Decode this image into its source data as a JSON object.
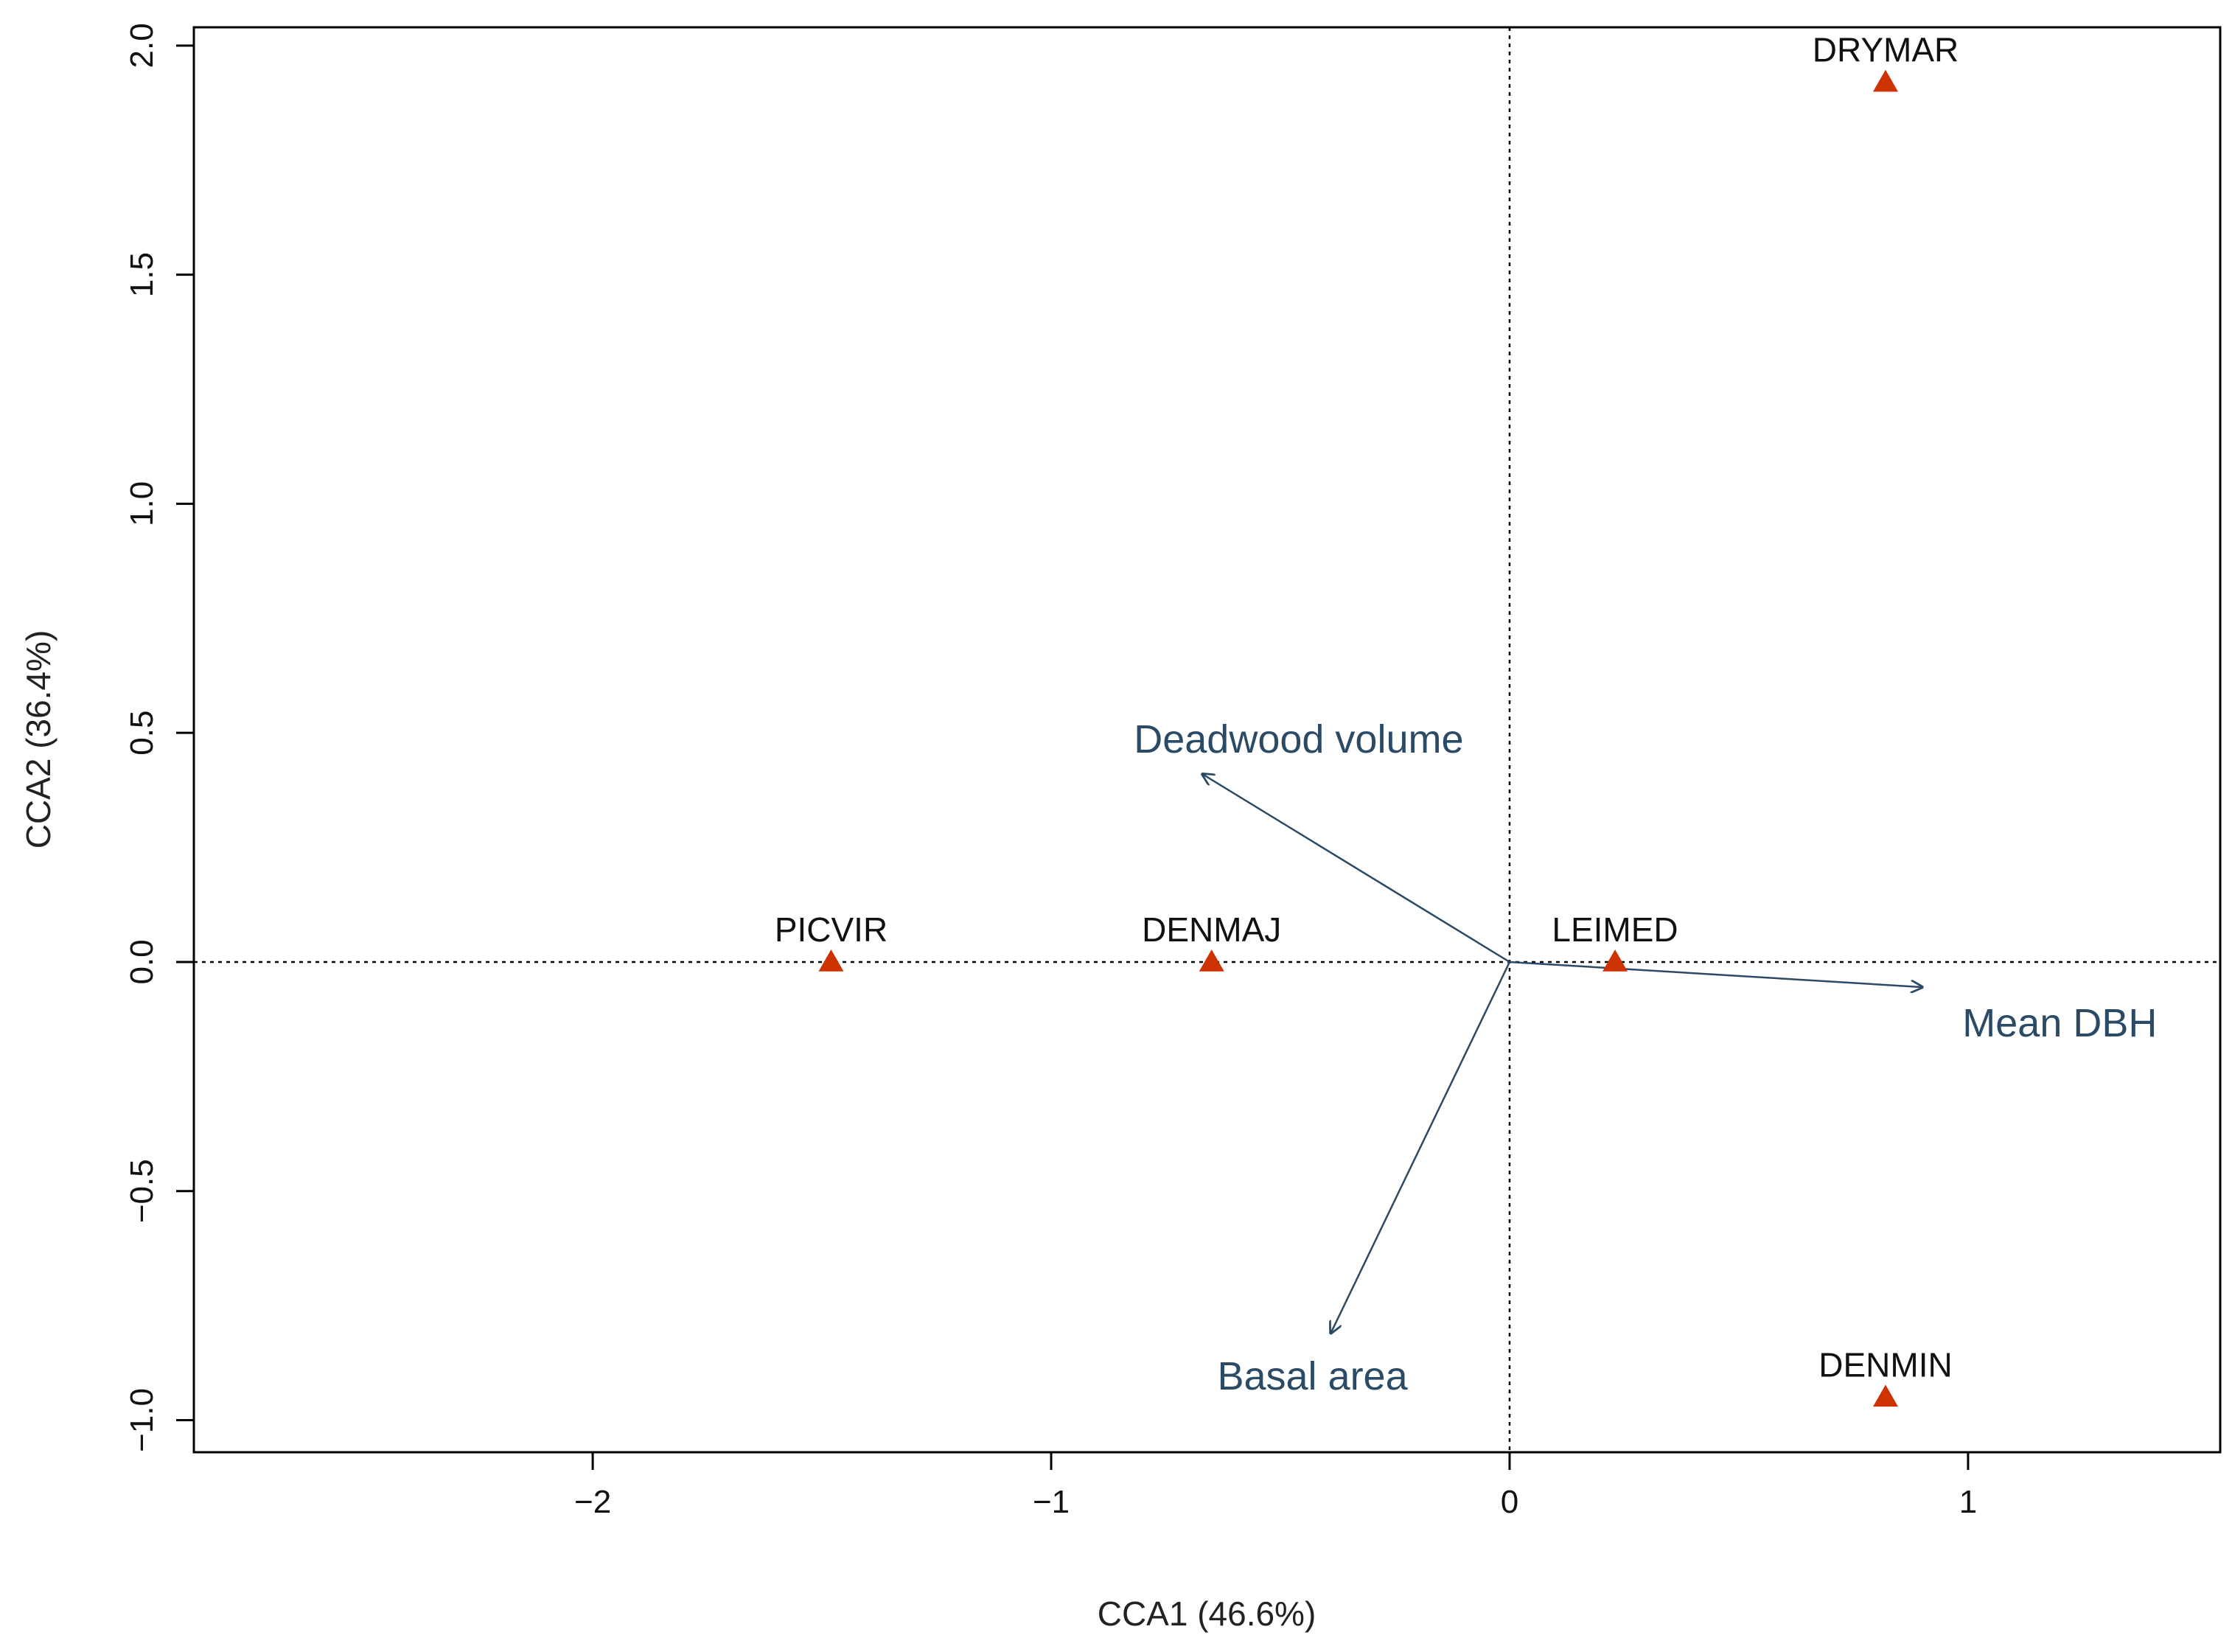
{
  "chart_data": {
    "type": "scatter",
    "title": "",
    "xlabel": "CCA1 (46.6%)",
    "ylabel": "CCA2 (36.4%)",
    "xlim": [
      -2.87,
      1.55
    ],
    "ylim": [
      -1.07,
      2.04
    ],
    "x_ticks": [
      -2,
      -1,
      0,
      1
    ],
    "x_tick_labels": [
      "−2",
      "−1",
      "0",
      "1"
    ],
    "y_ticks": [
      -1.0,
      -0.5,
      0.0,
      0.5,
      1.0,
      1.5,
      2.0
    ],
    "y_tick_labels": [
      "−1.0",
      "−0.5",
      "0.0",
      "0.5",
      "1.0",
      "1.5",
      "2.0"
    ],
    "reference_lines": {
      "x": 0,
      "y": 0,
      "style": "dotted"
    },
    "species": [
      {
        "label": "DRYMAR",
        "x": 0.82,
        "y": 1.92
      },
      {
        "label": "PICVIR",
        "x": -1.48,
        "y": 0.0
      },
      {
        "label": "DENMAJ",
        "x": -0.65,
        "y": 0.0
      },
      {
        "label": "LEIMED",
        "x": 0.23,
        "y": 0.0
      },
      {
        "label": "DENMIN",
        "x": 0.82,
        "y": -0.95
      }
    ],
    "vectors": [
      {
        "label": "Deadwood volume",
        "x": -0.67,
        "y": 0.41,
        "label_x": -0.46,
        "label_y": 0.48
      },
      {
        "label": "Mean DBH",
        "x": 0.9,
        "y": -0.055,
        "label_x": 1.2,
        "label_y": -0.14
      },
      {
        "label": "Basal area",
        "x": -0.39,
        "y": -0.81,
        "label_x": -0.43,
        "label_y": -0.91
      }
    ],
    "colors": {
      "species_marker": "#cc3300",
      "vector": "#2b4a66",
      "vector_label": "#2b4a66",
      "axis": "#000000"
    }
  }
}
